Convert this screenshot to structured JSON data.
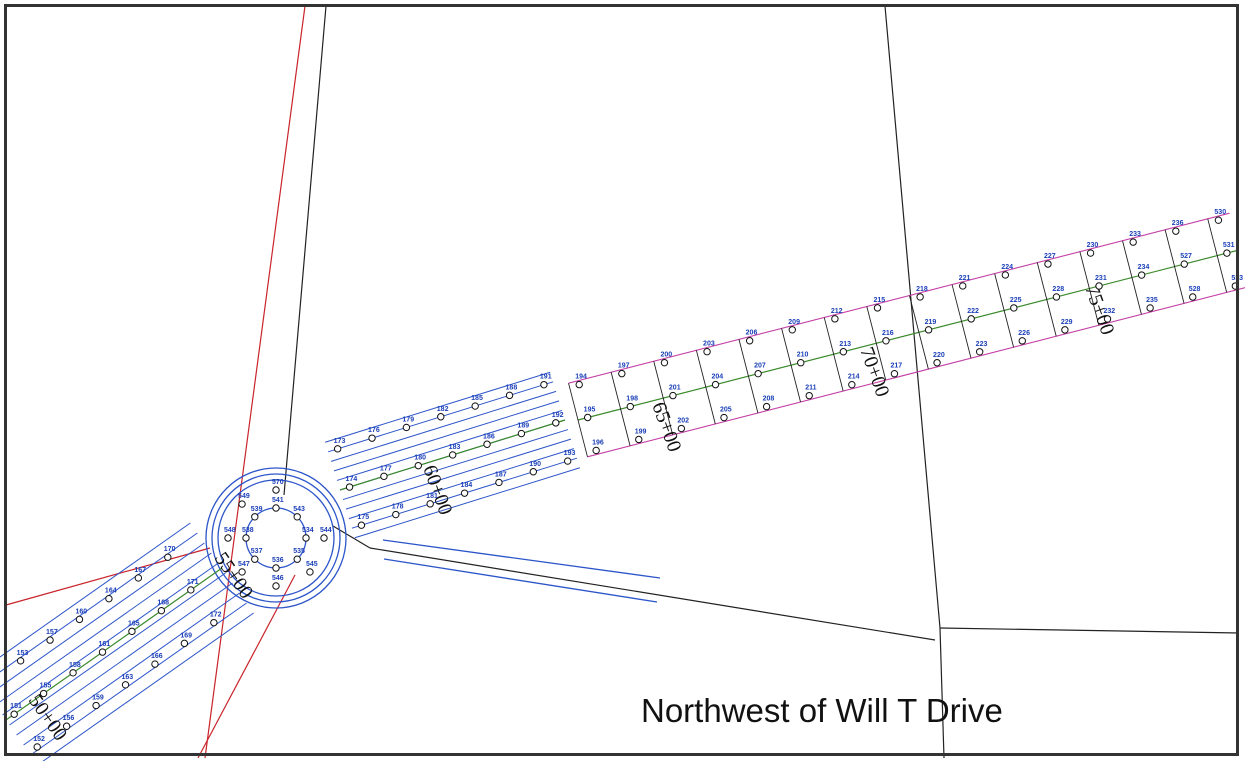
{
  "caption": "Northwest of Will T Drive",
  "colors": {
    "property_line": "#222222",
    "right_of_way": "#c8242a",
    "contour": "#2c55c9",
    "edge": "#c43fa6",
    "centerline": "#3a8a2a",
    "point_label": "#1a3fb8"
  },
  "stations": [
    {
      "text": "50+00"
    },
    {
      "text": "55+00"
    },
    {
      "text": "60+00"
    },
    {
      "text": "65+00"
    },
    {
      "text": "70+00"
    },
    {
      "text": "75+00"
    }
  ],
  "point_labels": [
    "148",
    "151",
    "152",
    "153",
    "155",
    "156",
    "157",
    "158",
    "159",
    "160",
    "161",
    "163",
    "164",
    "165",
    "166",
    "167",
    "168",
    "169",
    "170",
    "171",
    "172",
    "173",
    "174",
    "175",
    "176",
    "177",
    "178",
    "179",
    "180",
    "181",
    "182",
    "183",
    "184",
    "185",
    "186",
    "187",
    "188",
    "189",
    "190",
    "191",
    "192",
    "193",
    "194",
    "195",
    "196",
    "197",
    "198",
    "199",
    "200",
    "201",
    "202",
    "203",
    "204",
    "205",
    "206",
    "207",
    "208",
    "209",
    "210",
    "211",
    "212",
    "213",
    "214",
    "215",
    "216",
    "217",
    "218",
    "219",
    "220",
    "221",
    "222",
    "223",
    "224",
    "225",
    "226",
    "227",
    "228",
    "229",
    "230",
    "231",
    "232",
    "233",
    "234",
    "235",
    "236",
    "527",
    "528",
    "530",
    "531",
    "533",
    "534",
    "535",
    "536",
    "537",
    "538",
    "539",
    "541",
    "543",
    "544",
    "545",
    "546",
    "547",
    "548",
    "549",
    "570"
  ]
}
